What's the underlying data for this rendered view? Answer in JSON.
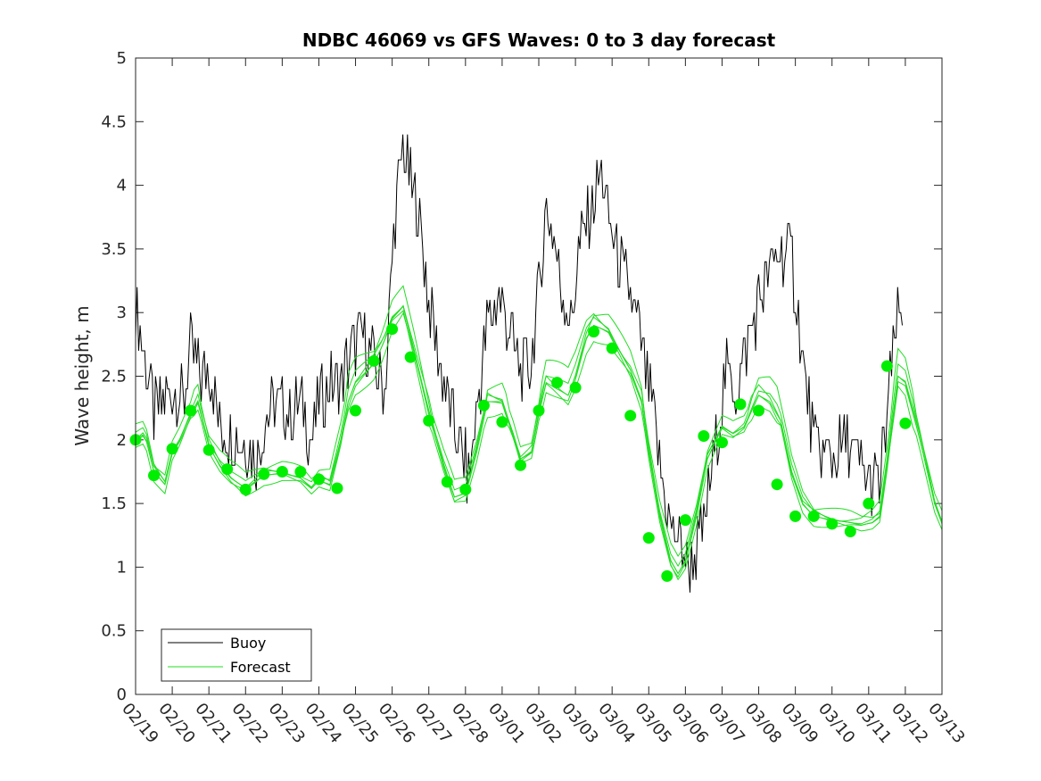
{
  "chart_data": {
    "type": "line",
    "title": "NDBC 46069 vs GFS Waves: 0 to 3 day forecast",
    "xlabel": "",
    "ylabel": "Wave height, m",
    "ylim": [
      0,
      5
    ],
    "xlim_days": [
      0,
      22
    ],
    "y_ticks": [
      "0",
      "0.5",
      "1",
      "1.5",
      "2",
      "2.5",
      "3",
      "3.5",
      "4",
      "4.5",
      "5"
    ],
    "x_tick_labels": [
      "02/19",
      "02/20",
      "02/21",
      "02/22",
      "02/23",
      "02/24",
      "02/25",
      "02/26",
      "02/27",
      "02/28",
      "03/01",
      "03/02",
      "03/03",
      "03/04",
      "03/05",
      "03/06",
      "03/07",
      "03/08",
      "03/09",
      "03/10",
      "03/11",
      "03/12",
      "03/13"
    ],
    "legend": {
      "position": "bottom-left",
      "entries": [
        {
          "label": "Buoy",
          "color": "#000000"
        },
        {
          "label": "Forecast",
          "color": "#00cc00"
        }
      ]
    },
    "colors": {
      "buoy": "#000000",
      "forecast": "#22dd22",
      "marker": "#00ee00"
    },
    "buoy_anchors": {
      "x": [
        0,
        0.1,
        0.3,
        0.5,
        0.8,
        1.0,
        1.3,
        1.5,
        1.8,
        2.0,
        2.3,
        2.6,
        3.0,
        3.3,
        3.6,
        3.9,
        4.2,
        4.5,
        4.8,
        5.0,
        5.3,
        5.6,
        5.9,
        6.2,
        6.5,
        6.8,
        7.0,
        7.1,
        7.3,
        7.5,
        7.7,
        8.0,
        8.3,
        8.6,
        8.9,
        9.1,
        9.3,
        9.6,
        9.9,
        10.2,
        10.5,
        10.8,
        11.2,
        11.4,
        11.6,
        11.9,
        12.1,
        12.4,
        12.7,
        12.9,
        13.1,
        13.4,
        13.7,
        14.0,
        14.3,
        14.6,
        14.9,
        15.1,
        15.3,
        15.5,
        15.8,
        16.1,
        16.4,
        16.7,
        17.0,
        17.3,
        17.6,
        17.9,
        18.2,
        18.5,
        18.8,
        19.1,
        19.4,
        19.7,
        20.0,
        20.3,
        20.6,
        20.8,
        20.95
      ],
      "y": [
        3.1,
        2.9,
        2.6,
        2.2,
        2.3,
        2.4,
        2.3,
        2.7,
        2.5,
        2.6,
        2.1,
        2.05,
        1.95,
        1.85,
        2.2,
        2.3,
        2.2,
        2.3,
        2.0,
        2.3,
        2.45,
        2.45,
        2.7,
        2.85,
        2.6,
        2.4,
        3.4,
        3.8,
        4.3,
        4.0,
        3.8,
        3.1,
        2.6,
        2.2,
        1.9,
        1.7,
        2.2,
        2.9,
        3.15,
        2.9,
        2.5,
        2.6,
        3.8,
        3.6,
        3.2,
        2.9,
        3.5,
        3.75,
        4.1,
        3.75,
        3.5,
        3.2,
        2.9,
        2.4,
        1.8,
        1.3,
        1.2,
        1.0,
        1.1,
        1.3,
        1.9,
        2.5,
        2.4,
        2.75,
        3.1,
        3.3,
        3.5,
        3.45,
        2.6,
        2.0,
        1.85,
        1.9,
        2.0,
        1.8,
        1.7,
        1.6,
        2.5,
        3.0,
        2.85
      ]
    },
    "forecast_anchors": {
      "x": [
        0,
        0.25,
        0.5,
        0.8,
        1.0,
        1.2,
        1.5,
        1.7,
        2.0,
        2.3,
        2.6,
        3.0,
        3.5,
        4.0,
        4.5,
        4.8,
        5.0,
        5.3,
        5.6,
        5.8,
        6.0,
        6.5,
        6.75,
        7.0,
        7.3,
        7.6,
        8.0,
        8.4,
        8.7,
        9.0,
        9.3,
        9.6,
        10.0,
        10.3,
        10.5,
        10.8,
        11.0,
        11.2,
        11.5,
        11.8,
        12.0,
        12.3,
        12.5,
        12.9,
        13.2,
        13.5,
        13.8,
        14.0,
        14.3,
        14.6,
        14.8,
        15.0,
        15.3,
        15.6,
        16.0,
        16.3,
        16.6,
        17.0,
        17.3,
        17.6,
        17.9,
        18.2,
        18.5,
        19.0,
        19.5,
        19.8,
        20.1,
        20.3,
        20.5,
        20.8,
        21.0,
        21.4,
        21.8,
        22.0
      ],
      "y": [
        2.0,
        2.05,
        1.75,
        1.65,
        1.9,
        2.0,
        2.2,
        2.3,
        1.95,
        1.8,
        1.7,
        1.62,
        1.72,
        1.74,
        1.7,
        1.62,
        1.68,
        1.65,
        2.0,
        2.3,
        2.45,
        2.6,
        2.75,
        2.95,
        3.05,
        2.7,
        2.2,
        1.8,
        1.55,
        1.58,
        1.9,
        2.3,
        2.3,
        2.05,
        1.85,
        1.9,
        2.2,
        2.45,
        2.4,
        2.35,
        2.5,
        2.8,
        2.9,
        2.85,
        2.7,
        2.55,
        2.3,
        1.9,
        1.4,
        1.05,
        0.95,
        1.05,
        1.4,
        1.85,
        2.1,
        2.05,
        2.1,
        2.35,
        2.3,
        2.15,
        1.75,
        1.5,
        1.4,
        1.37,
        1.35,
        1.33,
        1.35,
        1.4,
        1.8,
        2.5,
        2.45,
        2.0,
        1.5,
        1.35
      ]
    },
    "forecast_markers": {
      "x": [
        0,
        0.5,
        1.0,
        1.5,
        2.0,
        2.5,
        3.0,
        3.5,
        4.0,
        4.5,
        5.0,
        5.5,
        6.0,
        6.5,
        7.0,
        7.5,
        8.0,
        8.5,
        9.0,
        9.5,
        10.0,
        10.5,
        11.0,
        11.5,
        12.0,
        12.5,
        13.0,
        13.5,
        14.0,
        14.5,
        15.0,
        15.5,
        16.0,
        16.5,
        17.0,
        17.5,
        18.0,
        18.5,
        19.0,
        19.5,
        20.0,
        20.5,
        21.0
      ],
      "y": [
        2.0,
        1.72,
        1.93,
        2.23,
        1.92,
        1.77,
        1.61,
        1.73,
        1.75,
        1.75,
        1.69,
        1.62,
        2.23,
        2.62,
        2.87,
        2.65,
        2.15,
        1.67,
        1.61,
        2.27,
        2.14,
        1.8,
        2.23,
        2.45,
        2.41,
        2.85,
        2.72,
        2.19,
        1.23,
        0.93,
        1.37,
        2.03,
        1.98,
        2.28,
        2.23,
        1.65,
        1.4,
        1.4,
        1.34,
        1.28,
        1.5,
        2.58,
        2.13
      ]
    }
  }
}
